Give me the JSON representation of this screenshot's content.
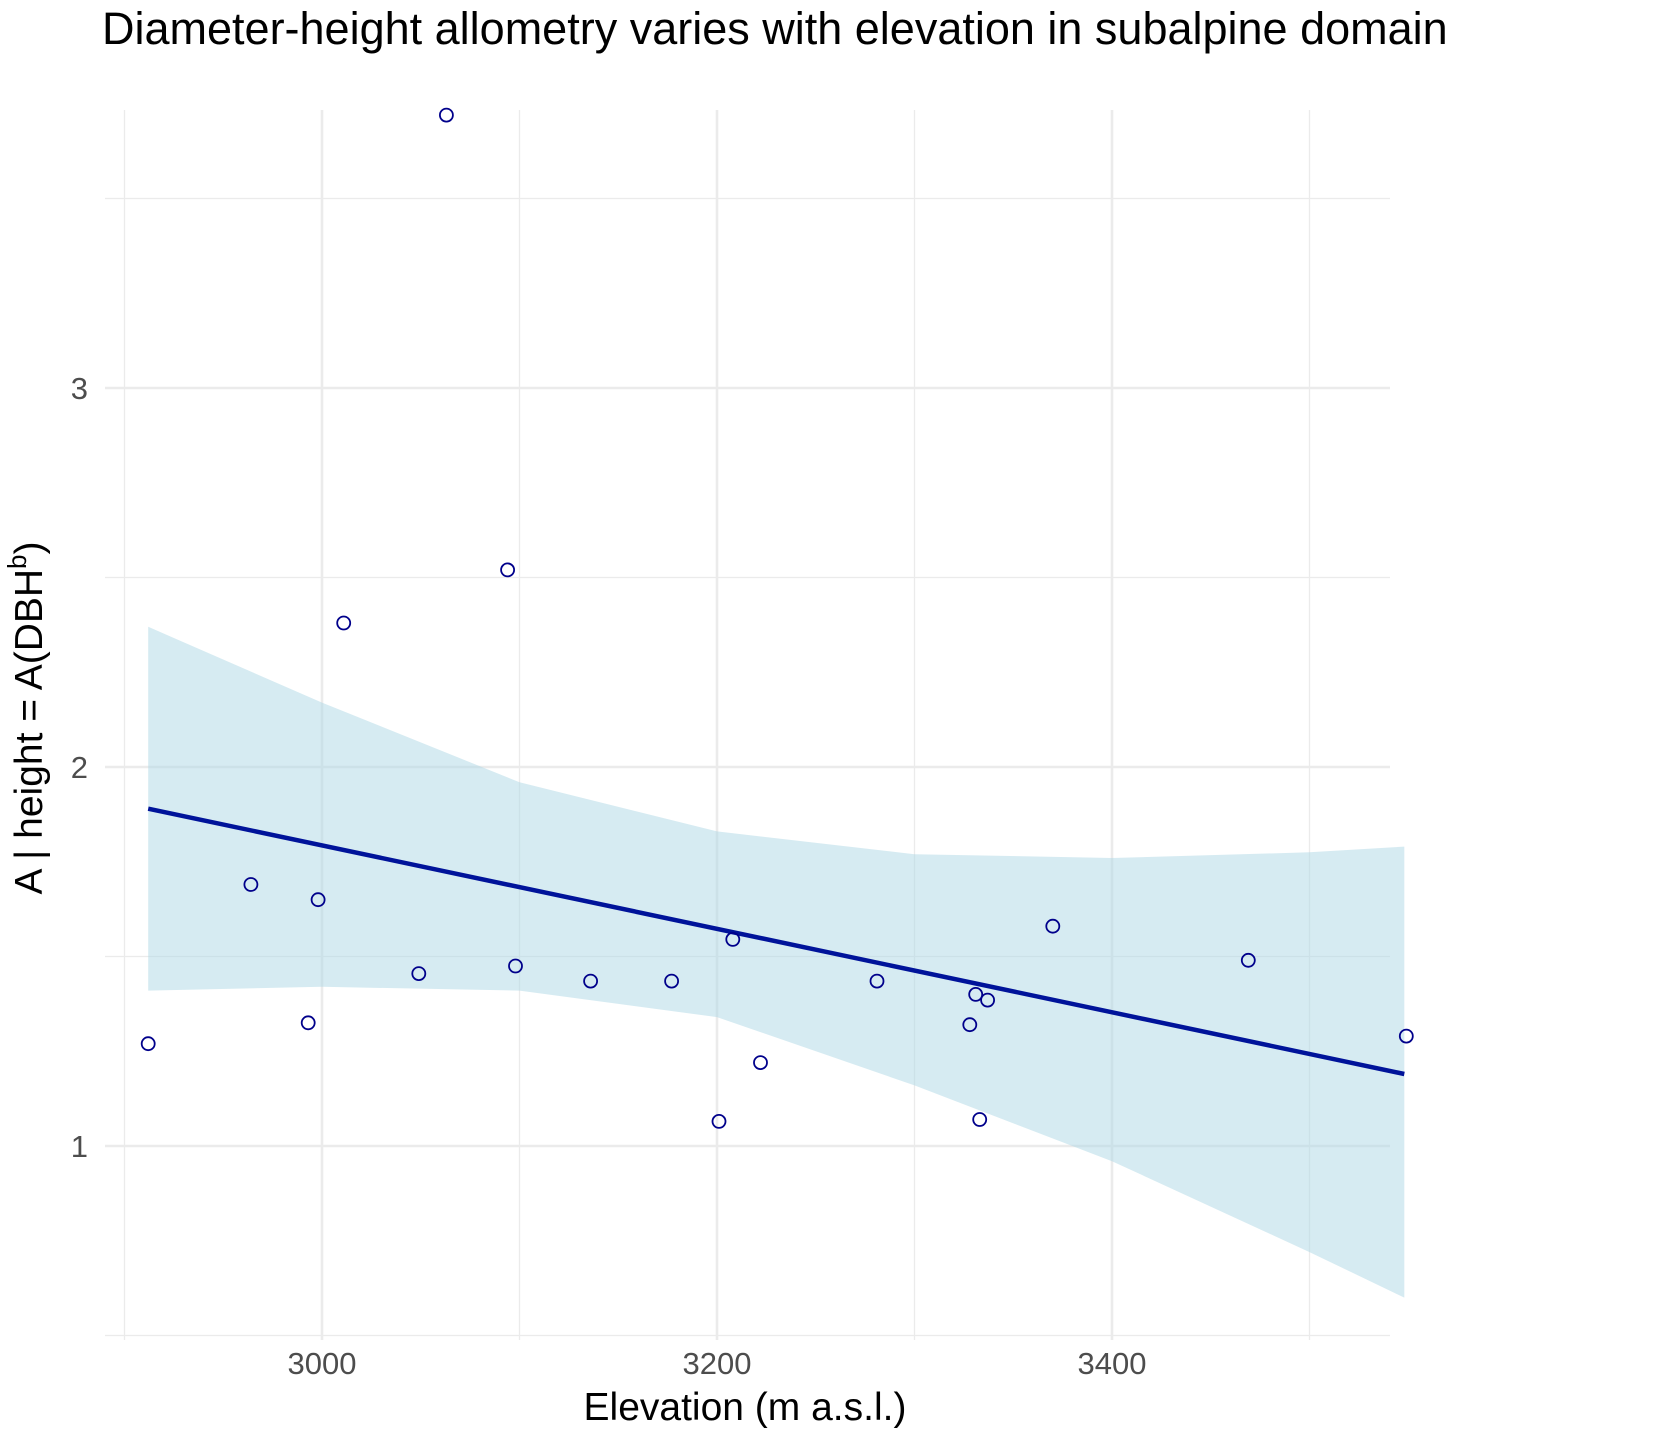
{
  "chart_data": {
    "type": "scatter",
    "title": "Diameter-height allometry varies with elevation in subalpine domain",
    "xlabel": "Elevation (m a.s.l.)",
    "ylabel_main": "A | height = A(DBH",
    "ylabel_sup": "b",
    "ylabel_close": ")",
    "xlim": [
      2880,
      3560
    ],
    "ylim": [
      0.5,
      3.75
    ],
    "x_ticks": [
      3000,
      3200,
      3400
    ],
    "y_ticks": [
      1,
      2,
      3
    ],
    "grid": true,
    "legend": "none",
    "colors": {
      "points": "#00008b",
      "line": "#00139a",
      "ribbon": "#add8e6"
    },
    "points": [
      {
        "x": 2912,
        "y": 1.27
      },
      {
        "x": 2964,
        "y": 1.69
      },
      {
        "x": 2993,
        "y": 1.325
      },
      {
        "x": 2998,
        "y": 1.65
      },
      {
        "x": 3011,
        "y": 2.38
      },
      {
        "x": 3049,
        "y": 1.455
      },
      {
        "x": 3063,
        "y": 3.72
      },
      {
        "x": 3094,
        "y": 2.52
      },
      {
        "x": 3098,
        "y": 1.475
      },
      {
        "x": 3136,
        "y": 1.435
      },
      {
        "x": 3177,
        "y": 1.435
      },
      {
        "x": 3201,
        "y": 1.065
      },
      {
        "x": 3208,
        "y": 1.545
      },
      {
        "x": 3222,
        "y": 1.22
      },
      {
        "x": 3281,
        "y": 1.435
      },
      {
        "x": 3328,
        "y": 1.32
      },
      {
        "x": 3331,
        "y": 1.4
      },
      {
        "x": 3333,
        "y": 1.07
      },
      {
        "x": 3337,
        "y": 1.385
      },
      {
        "x": 3370,
        "y": 1.58
      },
      {
        "x": 3469,
        "y": 1.49
      },
      {
        "x": 3549,
        "y": 1.29
      }
    ],
    "fit_line": [
      {
        "x": 2912,
        "y": 1.89
      },
      {
        "x": 3548,
        "y": 1.19
      }
    ],
    "ci_upper": [
      {
        "x": 2912,
        "y": 2.37
      },
      {
        "x": 3000,
        "y": 2.17
      },
      {
        "x": 3100,
        "y": 1.96
      },
      {
        "x": 3200,
        "y": 1.83
      },
      {
        "x": 3300,
        "y": 1.77
      },
      {
        "x": 3400,
        "y": 1.76
      },
      {
        "x": 3500,
        "y": 1.775
      },
      {
        "x": 3548,
        "y": 1.79
      }
    ],
    "ci_lower": [
      {
        "x": 2912,
        "y": 1.41
      },
      {
        "x": 3000,
        "y": 1.42
      },
      {
        "x": 3100,
        "y": 1.41
      },
      {
        "x": 3200,
        "y": 1.34
      },
      {
        "x": 3300,
        "y": 1.16
      },
      {
        "x": 3400,
        "y": 0.96
      },
      {
        "x": 3500,
        "y": 0.72
      },
      {
        "x": 3548,
        "y": 0.6
      }
    ]
  }
}
